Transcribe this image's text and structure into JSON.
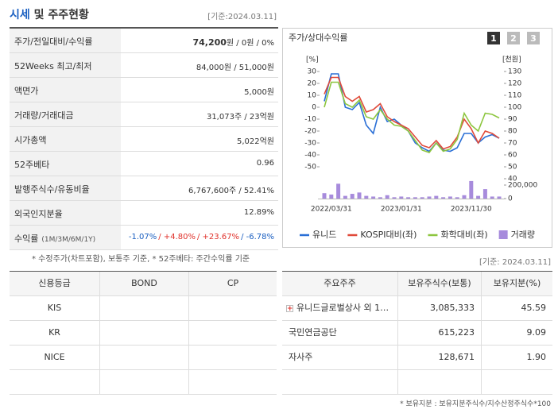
{
  "header": {
    "title_blue": "시세",
    "title_rest": "및 주주현황",
    "date": "[기준:2024.03.11]"
  },
  "summary": {
    "rows": [
      {
        "label": "주가/전일대비/수익률",
        "value_parts": [
          {
            "text": "74,200",
            "bold": true
          },
          {
            "text": "원 / 0원 / 0%"
          }
        ]
      },
      {
        "label": "52Weeks 최고/최저",
        "value": "84,000원 / 51,000원"
      },
      {
        "label": "액면가",
        "value": "5,000원"
      },
      {
        "label": "거래량/거래대금",
        "value": "31,073주 / 23억원"
      },
      {
        "label": "시가총액",
        "value": "5,022억원"
      },
      {
        "label": "52주베타",
        "value": "0.96"
      },
      {
        "label": "발행주식수/유동비율",
        "value": "6,767,600주 / 52.41%"
      },
      {
        "label": "외국인지분율",
        "value": "12.89%"
      },
      {
        "label": "수익률",
        "label_sub": "(1M/3M/6M/1Y)",
        "value_parts": [
          {
            "text": "-1.07%",
            "color": "#1a5fc1"
          },
          {
            "text": "/ +4.80%",
            "color": "#e0322b"
          },
          {
            "text": "/ +23.67%",
            "color": "#e0322b"
          },
          {
            "text": "/ -6.78%",
            "color": "#1a5fc1"
          }
        ]
      }
    ],
    "note": "* 수정주가(차트포함), 보통주 기준, * 52주베타: 주간수익률 기준"
  },
  "credit": {
    "header": [
      "신용등급",
      "BOND",
      "CP"
    ],
    "rows": [
      [
        "KIS",
        "",
        ""
      ],
      [
        "KR",
        "",
        ""
      ],
      [
        "NICE",
        "",
        ""
      ]
    ]
  },
  "holders": {
    "date": "[기준: 2024.03.11]",
    "header": [
      "주요주주",
      "보유주식수(보통)",
      "보유지분(%)"
    ],
    "rows": [
      [
        "유니드글로벌상사 외 1…",
        "3,085,333",
        "45.59"
      ],
      [
        "국민연금공단",
        "615,223",
        "9.09"
      ],
      [
        "자사주",
        "128,671",
        "1.90"
      ]
    ],
    "note": "* 보유지분 : 보유지분주식수/지수산정주식수*100"
  },
  "chart_data": {
    "type": "line",
    "title": "주가/상대수익률",
    "buttons": [
      "1",
      "2",
      "3"
    ],
    "y_unit": "[%]",
    "y2_unit": "[천원]",
    "categories": [
      null,
      "2022/03/31",
      null,
      null,
      null,
      null,
      null,
      null,
      null,
      null,
      null,
      "2023/01/31",
      null,
      null,
      null,
      null,
      null,
      null,
      null,
      null,
      null,
      "2023/11/30",
      null,
      null,
      null,
      null
    ],
    "ylim": [
      -50,
      30
    ],
    "yticks": [
      30,
      20,
      10,
      0,
      -10,
      -20,
      -30,
      -40,
      -50
    ],
    "y2lim": [
      40,
      130
    ],
    "y2ticks": [
      130,
      120,
      110,
      100,
      90,
      80,
      70,
      60,
      50,
      40
    ],
    "series": [
      {
        "name": "유니드",
        "color": "#2a6fd6",
        "axis": "y2",
        "values": [
          105,
          128,
          128,
          100,
          98,
          104,
          85,
          78,
          100,
          88,
          90,
          85,
          80,
          70,
          66,
          63,
          70,
          64,
          63,
          66,
          78,
          78,
          70,
          75,
          77,
          74
        ]
      },
      {
        "name": "KOSPI대비(좌)",
        "color": "#e04a3a",
        "values": [
          11,
          25,
          25,
          9,
          5,
          9,
          -4,
          -2,
          3,
          -8,
          -12,
          -15,
          -18,
          -25,
          -32,
          -34,
          -28,
          -35,
          -33,
          -25,
          -10,
          -18,
          -30,
          -20,
          -22,
          -26
        ]
      },
      {
        "name": "화학대비(좌)",
        "color": "#8dc63f",
        "values": [
          0,
          21,
          21,
          3,
          0,
          6,
          -8,
          -10,
          -2,
          -10,
          -15,
          -16,
          -20,
          -28,
          -36,
          -38,
          -30,
          -37,
          -35,
          -27,
          -5,
          -15,
          -20,
          -5,
          -6,
          -9
        ]
      }
    ],
    "volume": {
      "name": "거래량",
      "color": "#a78bdc",
      "values": [
        80000,
        60000,
        220000,
        40000,
        70000,
        90000,
        40000,
        30000,
        20000,
        50000,
        20000,
        30000,
        20000,
        20000,
        20000,
        30000,
        40000,
        20000,
        30000,
        20000,
        50000,
        260000,
        40000,
        140000,
        30000,
        30000
      ],
      "lim": [
        0,
        200000
      ],
      "ticks": [
        {
          "value": 200000,
          "label": "200,000"
        },
        0
      ]
    }
  }
}
